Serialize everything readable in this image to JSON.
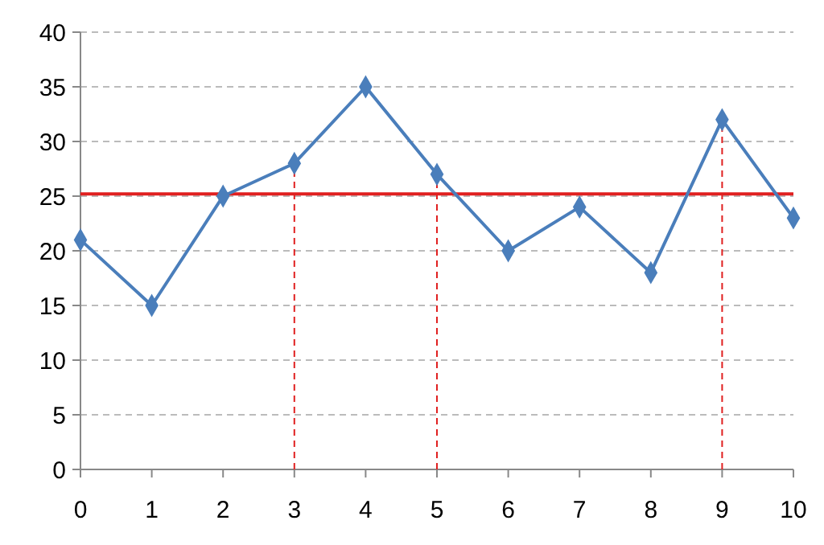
{
  "chart_data": {
    "type": "line",
    "x": [
      0,
      1,
      2,
      3,
      4,
      5,
      6,
      7,
      8,
      9,
      10
    ],
    "series": [
      {
        "color": "#4a7ebb",
        "values": [
          21,
          15,
          25,
          28,
          35,
          27,
          20,
          24,
          18,
          32,
          23
        ]
      }
    ],
    "xlim": [
      0,
      10
    ],
    "xticks": [
      0,
      1,
      2,
      3,
      4,
      5,
      6,
      7,
      8,
      9,
      10
    ],
    "ylim": [
      0,
      40
    ],
    "yticks": [
      0,
      5,
      10,
      15,
      20,
      25,
      30,
      35,
      40
    ],
    "grid": "y",
    "marker": "diamond",
    "line_style": "solid",
    "ref_lines": [
      {
        "axis": "y",
        "value": 25.2,
        "color": "#e02020",
        "line_style": "solid"
      },
      {
        "axis": "x",
        "value": 3,
        "color": "#e02020",
        "line_style": "dashed"
      },
      {
        "axis": "x",
        "value": 5,
        "color": "#e02020",
        "line_style": "dashed"
      },
      {
        "axis": "x",
        "value": 9,
        "color": "#e02020",
        "line_style": "dashed"
      }
    ]
  }
}
